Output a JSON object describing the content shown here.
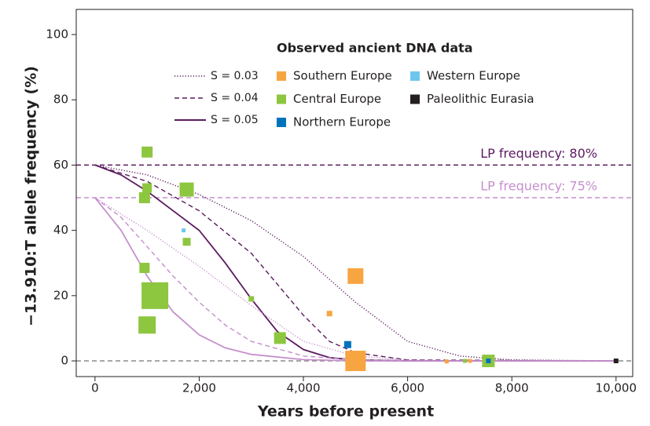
{
  "chart_data": {
    "type": "scatter",
    "x_label": "Years before present",
    "y_label": "−13.910:T allele frequency (%)",
    "legend_title": "Observed ancient DNA data",
    "xlim": [
      -360,
      10320
    ],
    "ylim": [
      -4.8,
      107.7
    ],
    "xticks": [
      0,
      {
        "value": 2000,
        "label": "2,000"
      },
      {
        "value": 4000,
        "label": "4,000"
      },
      {
        "value": 6000,
        "label": "6,000"
      },
      {
        "value": 8000,
        "label": "8,000"
      },
      {
        "value": 10000,
        "label": "10,000"
      }
    ],
    "yticks": [
      0,
      20,
      40,
      60,
      80,
      100
    ],
    "reference_lines": [
      {
        "y": 60,
        "label": "LP frequency: 80%",
        "color": "#5b1a5f"
      },
      {
        "y": 50,
        "label": "LP frequency: 75%",
        "color": "#c58fcc"
      },
      {
        "y": 0,
        "color": "#8a8a8a"
      }
    ],
    "series": [
      {
        "name": "S = 0.03",
        "color": "#5b1a5f",
        "dash": "dotted",
        "x": [
          0,
          1000,
          2000,
          3000,
          4000,
          5000,
          6000,
          7000,
          8000,
          10000
        ],
        "values": [
          60,
          57,
          51,
          43,
          32,
          18,
          6,
          1.5,
          0.3,
          0
        ]
      },
      {
        "name": "S = 0.04",
        "color": "#5b1a5f",
        "dash": "dashed",
        "x": [
          0,
          1000,
          2000,
          3000,
          4000,
          4500,
          5000,
          6000,
          10000
        ],
        "values": [
          60,
          55,
          46,
          33,
          14,
          6,
          2.5,
          0.3,
          0
        ]
      },
      {
        "name": "S = 0.05",
        "color": "#5b1a5f",
        "dash": "solid",
        "x": [
          0,
          500,
          1000,
          1500,
          2000,
          2500,
          3000,
          3500,
          4000,
          4500,
          5000,
          6000,
          10000
        ],
        "values": [
          60,
          57,
          52,
          46,
          40,
          30,
          19,
          9,
          3.5,
          1,
          0.3,
          0,
          0
        ]
      },
      {
        "color": "#c58fcc",
        "dash": "dotted",
        "x": [
          0,
          1000,
          2000,
          3000,
          4000,
          5000,
          6000,
          7000,
          10000
        ],
        "values": [
          50,
          40,
          29,
          17,
          6,
          1.5,
          0.3,
          0,
          0
        ]
      },
      {
        "color": "#c58fcc",
        "dash": "dashed",
        "x": [
          0,
          500,
          1000,
          1500,
          2000,
          2500,
          3000,
          4000,
          5000,
          6000,
          10000
        ],
        "values": [
          50,
          44,
          35,
          26,
          18,
          11,
          6,
          1.5,
          0.3,
          0,
          0
        ]
      },
      {
        "color": "#c58fcc",
        "dash": "solid",
        "x": [
          0,
          500,
          1000,
          1500,
          2000,
          2500,
          3000,
          4000,
          5000,
          10000
        ],
        "values": [
          50,
          40,
          26,
          15,
          8,
          4,
          2,
          0.4,
          0,
          0
        ]
      }
    ],
    "groups": [
      {
        "name": "Southern Europe",
        "color": "#f7a541",
        "x": [
          5000,
          4500,
          5000,
          6750,
          7200
        ],
        "values": [
          26,
          14.5,
          0,
          -0.2,
          0
        ],
        "sizes": [
          20,
          7,
          26,
          5,
          5
        ]
      },
      {
        "name": "Central Europe",
        "color": "#8dc63f",
        "x": [
          1000,
          1000,
          950,
          1760,
          1760,
          950,
          1150,
          1000,
          3000,
          3550,
          7550,
          7100
        ],
        "values": [
          64,
          53,
          50,
          52.5,
          36.5,
          28.5,
          20,
          11,
          19,
          7,
          0,
          0
        ],
        "sizes": [
          14,
          12,
          14,
          18,
          10,
          13,
          34,
          22,
          7,
          15,
          16,
          5
        ]
      },
      {
        "name": "Northern Europe",
        "color": "#0072bc",
        "x": [
          4850,
          7550
        ],
        "values": [
          5,
          0
        ],
        "sizes": [
          9,
          6
        ]
      },
      {
        "name": "Western Europe",
        "color": "#6ec6ef",
        "x": [
          1700
        ],
        "values": [
          40
        ],
        "sizes": [
          5
        ]
      },
      {
        "name": "Paleolithic Eurasia",
        "color": "#231f20",
        "x": [
          10000
        ],
        "values": [
          0
        ],
        "sizes": [
          6
        ]
      }
    ]
  }
}
